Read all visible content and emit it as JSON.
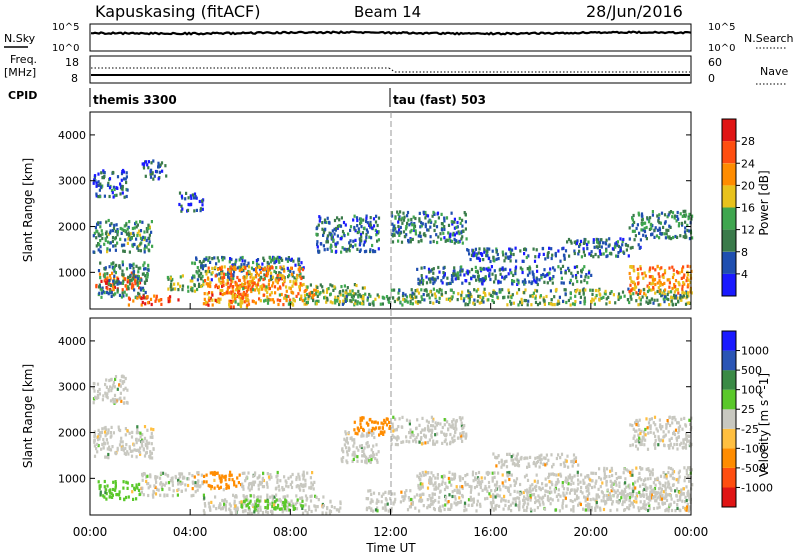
{
  "header": {
    "station": "Kapuskasing (fitACF)",
    "beam": "Beam 14",
    "date": "28/Jun/2016"
  },
  "noise_panel": {
    "left_label": "N.Sky",
    "right_label": "N.Search",
    "ticks": [
      "10^5",
      "10^0"
    ]
  },
  "freq_panel": {
    "left_label_1": "Freq.",
    "left_label_2": "[MHz]",
    "right_label": "Nave",
    "left_ticks": [
      "18",
      "8"
    ],
    "right_ticks": [
      "60",
      "0"
    ]
  },
  "cpid": {
    "label": "CPID",
    "segments": [
      "themis 3300",
      "tau (fast) 503"
    ]
  },
  "x_axis": {
    "label": "Time UT",
    "ticks": [
      "00:00",
      "04:00",
      "08:00",
      "12:00",
      "16:00",
      "20:00",
      "00:00"
    ]
  },
  "colors": {
    "power": [
      "#1a1aff",
      "#1f4fb0",
      "#3a7a4a",
      "#3fa64f",
      "#e8c21c",
      "#ff8c00",
      "#ff4e10",
      "#e01515"
    ],
    "velocity": [
      "#e01515",
      "#ff4e10",
      "#ff8c00",
      "#ffbf40",
      "#c8c8c0",
      "#5ac82a",
      "#3a8a45",
      "#2a55b5",
      "#1a1aff"
    ]
  },
  "chart_data": [
    {
      "type": "heatmap",
      "panel": "power",
      "xlabel": "Time UT",
      "ylabel": "Slant Range [km]",
      "xlim": [
        0,
        24
      ],
      "ylim": [
        200,
        4500
      ],
      "y_ticks": [
        "4000",
        "3000",
        "2000",
        "1000"
      ],
      "colorbar": {
        "label": "Power [dB]",
        "ticks": [
          "28",
          "24",
          "20",
          "16",
          "12",
          "8",
          "4"
        ],
        "range": [
          0,
          32
        ]
      },
      "regions": [
        {
          "t0": 0.2,
          "t1": 2.0,
          "r0": 550,
          "r1": 950,
          "v": 25
        },
        {
          "t0": 0.3,
          "t1": 2.3,
          "r0": 400,
          "r1": 1200,
          "v": 10
        },
        {
          "t0": 0.1,
          "t1": 2.5,
          "r0": 1400,
          "r1": 2100,
          "v": 11
        },
        {
          "t0": 0.1,
          "t1": 1.5,
          "r0": 2600,
          "r1": 3200,
          "v": 7
        },
        {
          "t0": 2.0,
          "t1": 3.0,
          "r0": 3000,
          "r1": 3400,
          "v": 6
        },
        {
          "t0": 1.5,
          "t1": 3.5,
          "r0": 250,
          "r1": 450,
          "v": 26
        },
        {
          "t0": 3.0,
          "t1": 4.5,
          "r0": 550,
          "r1": 900,
          "v": 14
        },
        {
          "t0": 3.5,
          "t1": 4.5,
          "r0": 2300,
          "r1": 2700,
          "v": 6
        },
        {
          "t0": 4.5,
          "t1": 6.5,
          "r0": 200,
          "r1": 800,
          "v": 24
        },
        {
          "t0": 4.0,
          "t1": 8.5,
          "r0": 800,
          "r1": 1300,
          "v": 9
        },
        {
          "t0": 4.6,
          "t1": 8.5,
          "r0": 600,
          "r1": 1100,
          "v": 22
        },
        {
          "t0": 5.5,
          "t1": 9.0,
          "r0": 250,
          "r1": 650,
          "v": 20
        },
        {
          "t0": 8.5,
          "t1": 11.0,
          "r0": 250,
          "r1": 700,
          "v": 14
        },
        {
          "t0": 9.0,
          "t1": 11.5,
          "r0": 1400,
          "r1": 2200,
          "v": 8
        },
        {
          "t0": 10.0,
          "t1": 12.0,
          "r0": 250,
          "r1": 500,
          "v": 12
        },
        {
          "t0": 12.0,
          "t1": 15.0,
          "r0": 1600,
          "r1": 2300,
          "v": 9
        },
        {
          "t0": 12.0,
          "t1": 24.0,
          "r0": 250,
          "r1": 600,
          "v": 13
        },
        {
          "t0": 13.0,
          "t1": 20.0,
          "r0": 700,
          "r1": 1100,
          "v": 8
        },
        {
          "t0": 15.0,
          "t1": 19.0,
          "r0": 1200,
          "r1": 1500,
          "v": 7
        },
        {
          "t0": 19.0,
          "t1": 22.0,
          "r0": 1300,
          "r1": 1700,
          "v": 7
        },
        {
          "t0": 21.5,
          "t1": 24.0,
          "r0": 1700,
          "r1": 2300,
          "v": 10
        },
        {
          "t0": 21.5,
          "t1": 24.0,
          "r0": 500,
          "r1": 1100,
          "v": 22
        }
      ]
    },
    {
      "type": "heatmap",
      "panel": "velocity",
      "xlabel": "Time UT",
      "ylabel": "Slant Range [km]",
      "xlim": [
        0,
        24
      ],
      "ylim": [
        200,
        4500
      ],
      "y_ticks": [
        "4000",
        "3000",
        "2000",
        "1000"
      ],
      "colorbar": {
        "label": "Velocity [m s^-1]",
        "ticks": [
          "1000",
          "500",
          "100",
          "25",
          "-25",
          "-100",
          "-500",
          "-1000"
        ],
        "range": [
          -1000,
          1000
        ]
      },
      "regions": [
        {
          "t0": 0.3,
          "t1": 2.0,
          "r0": 500,
          "r1": 900,
          "v": 80
        },
        {
          "t0": 0.1,
          "t1": 2.5,
          "r0": 1400,
          "r1": 2100,
          "v": 0
        },
        {
          "t0": 0.1,
          "t1": 1.5,
          "r0": 2600,
          "r1": 3200,
          "v": 0
        },
        {
          "t0": 2.0,
          "t1": 4.5,
          "r0": 550,
          "r1": 1100,
          "v": 0
        },
        {
          "t0": 4.5,
          "t1": 6.0,
          "r0": 700,
          "r1": 1100,
          "v": -120
        },
        {
          "t0": 4.5,
          "t1": 10.0,
          "r0": 200,
          "r1": 600,
          "v": 0
        },
        {
          "t0": 6.0,
          "t1": 9.0,
          "r0": 700,
          "r1": 1100,
          "v": 0
        },
        {
          "t0": 6.0,
          "t1": 8.5,
          "r0": 250,
          "r1": 500,
          "v": 60
        },
        {
          "t0": 10.0,
          "t1": 11.5,
          "r0": 1300,
          "r1": 2000,
          "v": 0
        },
        {
          "t0": 10.5,
          "t1": 12.0,
          "r0": 1900,
          "r1": 2300,
          "v": -110
        },
        {
          "t0": 11.0,
          "t1": 24.0,
          "r0": 250,
          "r1": 700,
          "v": 0
        },
        {
          "t0": 12.0,
          "t1": 15.0,
          "r0": 1700,
          "r1": 2300,
          "v": 0
        },
        {
          "t0": 13.0,
          "t1": 20.0,
          "r0": 700,
          "r1": 1100,
          "v": 0
        },
        {
          "t0": 16.0,
          "t1": 19.5,
          "r0": 1200,
          "r1": 1500,
          "v": 0
        },
        {
          "t0": 20.0,
          "t1": 24.0,
          "r0": 500,
          "r1": 1200,
          "v": 0
        },
        {
          "t0": 21.5,
          "t1": 24.0,
          "r0": 1600,
          "r1": 2300,
          "v": 0
        }
      ]
    }
  ]
}
